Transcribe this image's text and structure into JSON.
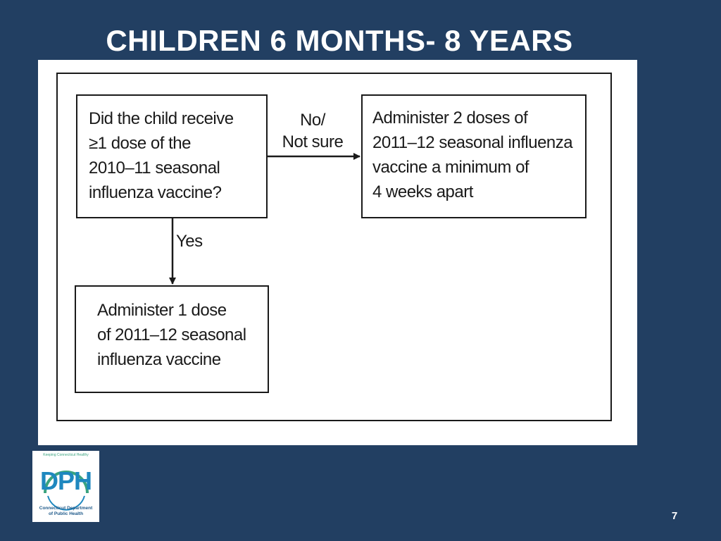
{
  "slide": {
    "title": "CHILDREN 6 MONTHS- 8 YEARS",
    "page_number": "7"
  },
  "flowchart": {
    "question": "Did the child receive\n≥1 dose of the\n2010–11 seasonal\ninfluenza vaccine?",
    "no_label": "No/\nNot sure",
    "no_outcome": "Administer 2 doses of\n2011–12 seasonal influenza\nvaccine a minimum of\n4 weeks apart",
    "yes_label": "Yes",
    "yes_outcome": "Administer 1 dose\nof 2011–12 seasonal\ninfluenza vaccine"
  },
  "logo": {
    "main_text": "DPH",
    "arc_text": "Keeping Connecticut Healthy",
    "subtitle": "Connecticut Department\nof Public Health",
    "colors": {
      "primary": "#1f88bf",
      "accent": "#3aa37f"
    }
  },
  "colors": {
    "background": "#223f62",
    "panel": "#ffffff",
    "ink": "#1a1a1a"
  }
}
